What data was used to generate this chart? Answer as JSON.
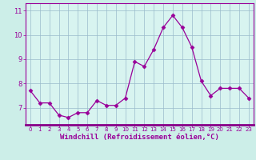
{
  "x": [
    0,
    1,
    2,
    3,
    4,
    5,
    6,
    7,
    8,
    9,
    10,
    11,
    12,
    13,
    14,
    15,
    16,
    17,
    18,
    19,
    20,
    21,
    22,
    23
  ],
  "y": [
    7.7,
    7.2,
    7.2,
    6.7,
    6.6,
    6.8,
    6.8,
    7.3,
    7.1,
    7.1,
    7.4,
    8.9,
    8.7,
    9.4,
    10.3,
    10.8,
    10.3,
    9.5,
    8.1,
    7.5,
    7.8,
    7.8,
    7.8,
    7.4
  ],
  "line_color": "#990099",
  "marker": "D",
  "marker_size": 2.5,
  "bg_color": "#cceee8",
  "plot_bg_color": "#d8f4f0",
  "grid_color": "#99bbcc",
  "xlabel": "Windchill (Refroidissement éolien,°C)",
  "xlim": [
    -0.5,
    23.5
  ],
  "ylim": [
    6.3,
    11.3
  ],
  "yticks": [
    7,
    8,
    9,
    10,
    11
  ],
  "xticks": [
    0,
    1,
    2,
    3,
    4,
    5,
    6,
    7,
    8,
    9,
    10,
    11,
    12,
    13,
    14,
    15,
    16,
    17,
    18,
    19,
    20,
    21,
    22,
    23
  ],
  "tick_color": "#990099",
  "label_color": "#990099",
  "axis_color": "#990099",
  "separator_color": "#880088",
  "tick_labelsize": 5.0,
  "ylabel_fontsize": 6.5,
  "xlabel_fontsize": 6.5
}
